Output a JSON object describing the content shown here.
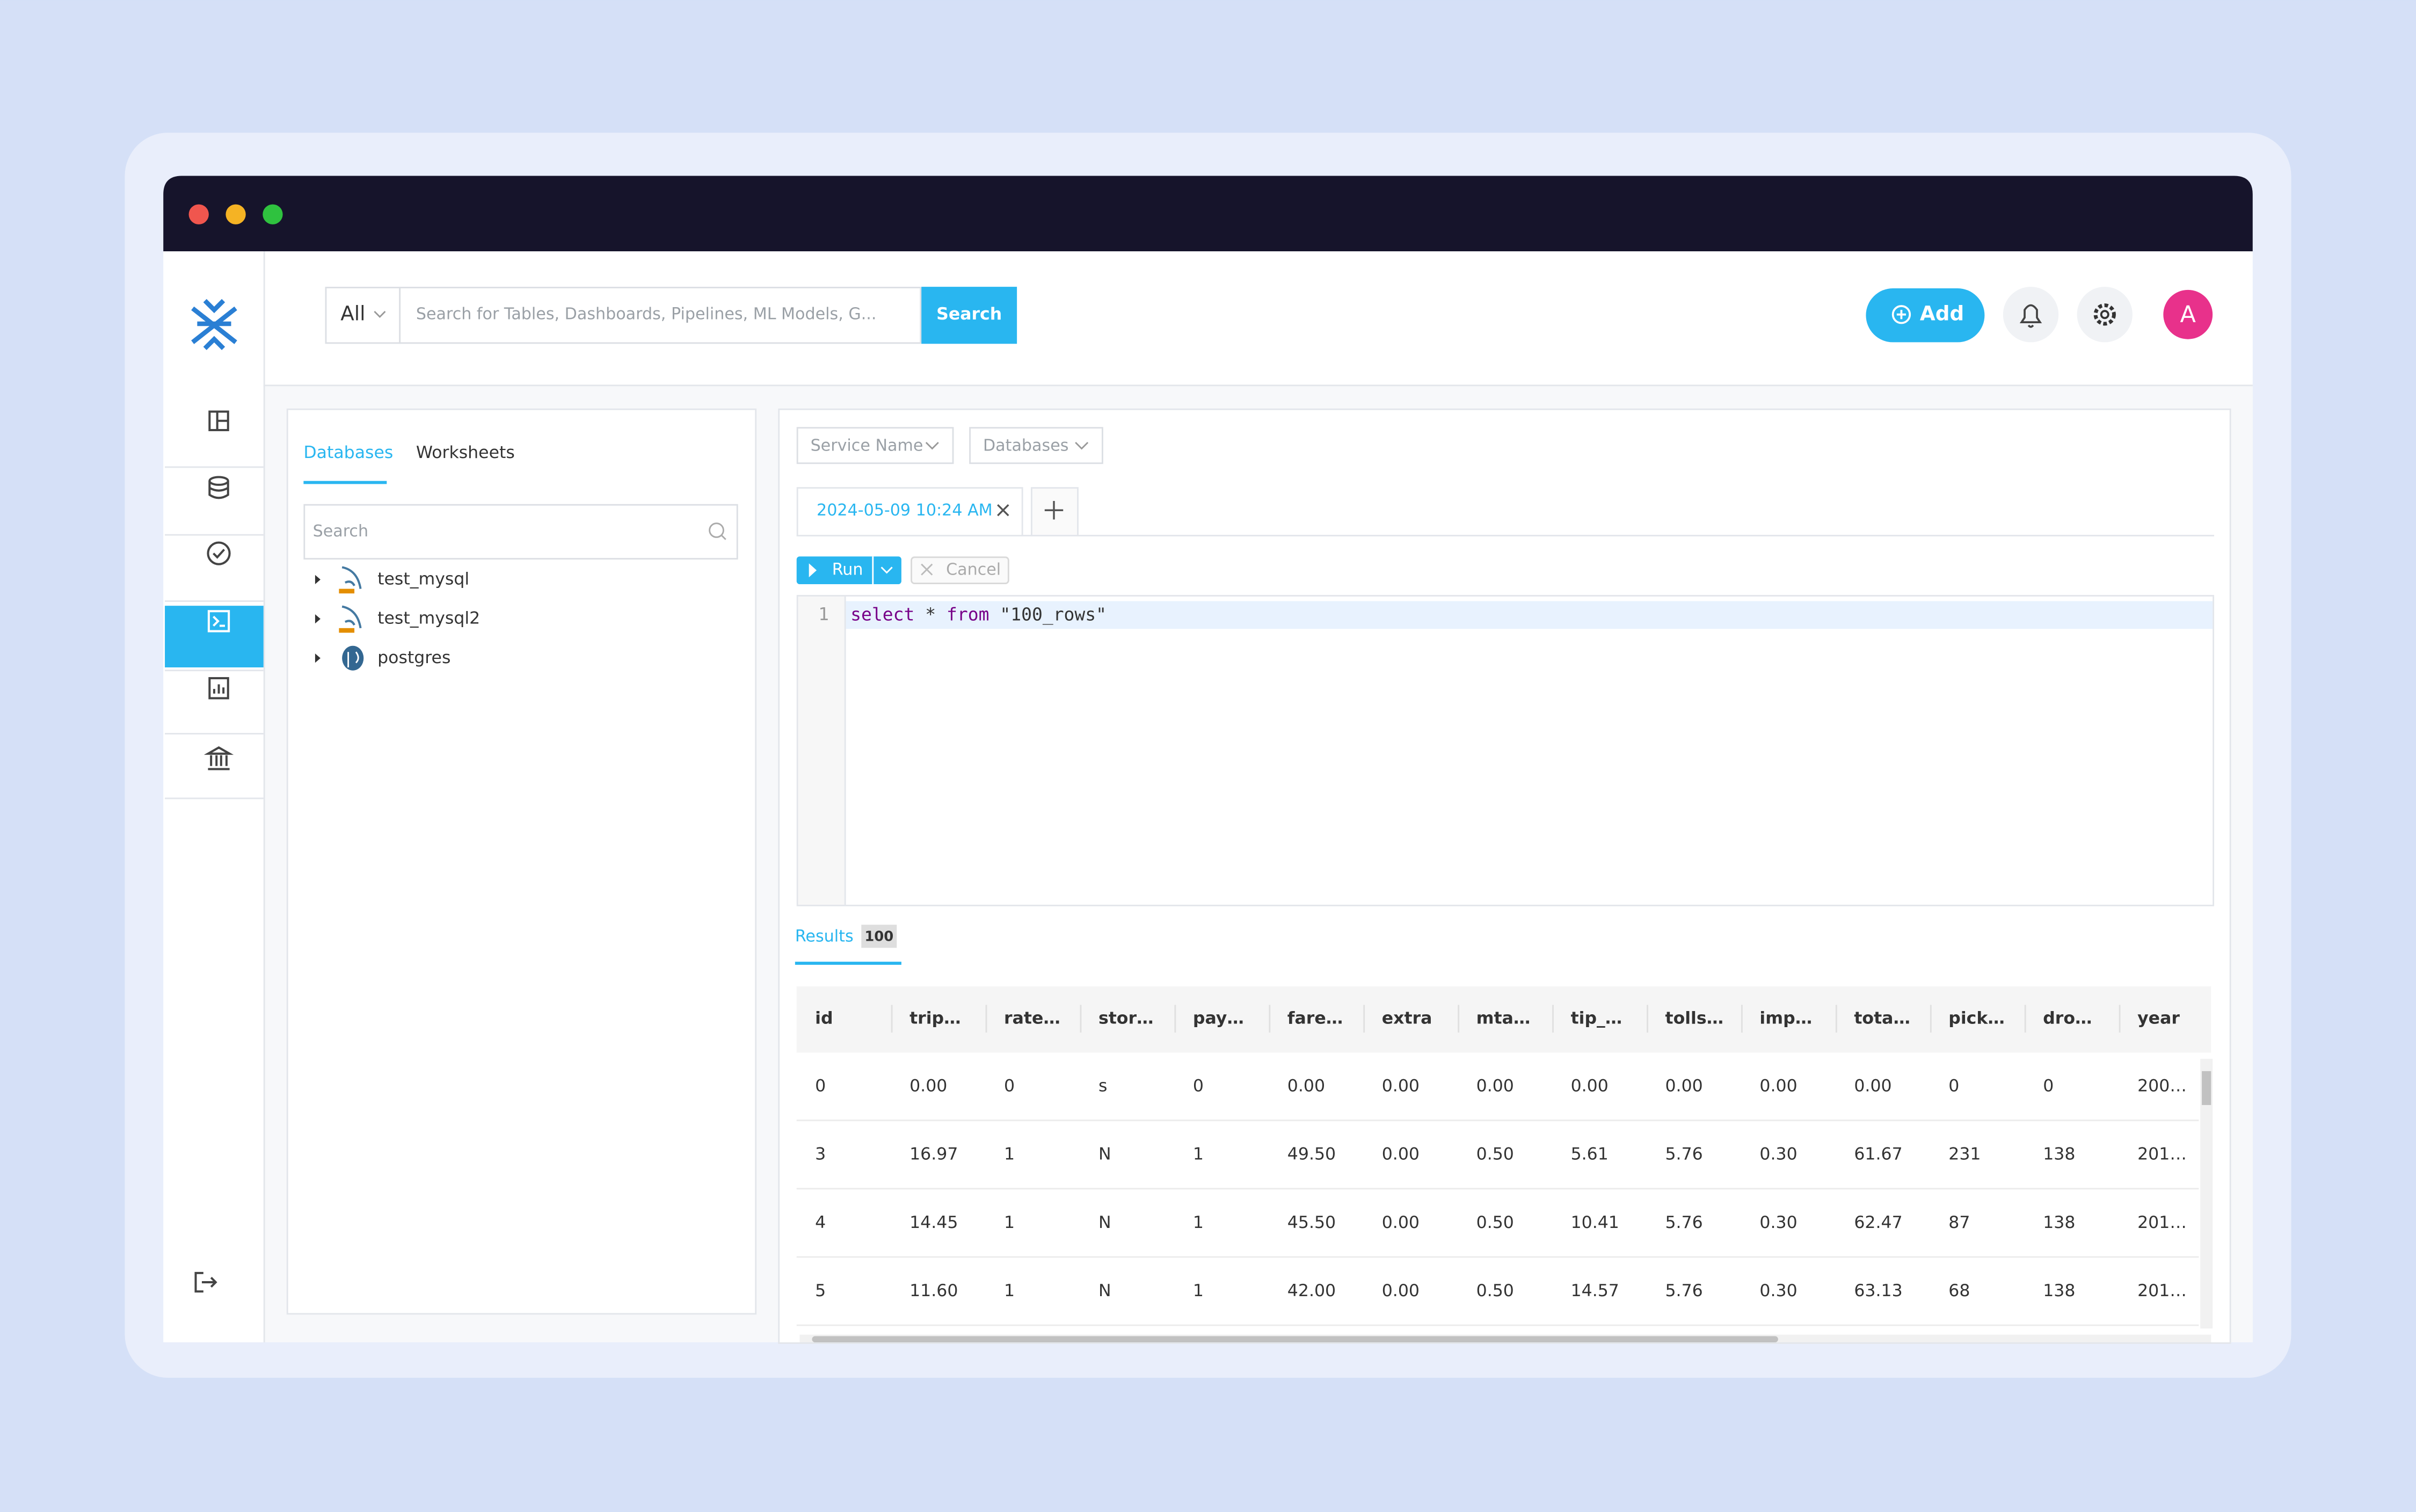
{
  "search": {
    "scope": "All",
    "placeholder": "Search for Tables, Dashboards, Pipelines, ML Models, G...",
    "button": "Search"
  },
  "header_actions": {
    "add": "Add",
    "avatar": "A"
  },
  "explorer": {
    "tabs": [
      "Databases",
      "Worksheets"
    ],
    "search_placeholder": "Search",
    "databases": [
      "test_mysql",
      "test_mysql2",
      "postgres"
    ]
  },
  "query": {
    "filters": [
      "Service Name",
      "Databases"
    ],
    "tab": "2024-05-09 10:24 AM",
    "run": "Run",
    "cancel": "Cancel",
    "line_number": "1",
    "sql_tokens": [
      "select",
      " * ",
      "from",
      " \"100_rows\""
    ]
  },
  "results": {
    "label": "Results",
    "count": "100",
    "columns": [
      "id",
      "trip…",
      "rate…",
      "stor…",
      "pay…",
      "fare…",
      "extra",
      "mta…",
      "tip_…",
      "tolls…",
      "imp…",
      "tota…",
      "pick…",
      "dro…",
      "year"
    ],
    "rows": [
      [
        "0",
        "0.00",
        "0",
        "s",
        "0",
        "0.00",
        "0.00",
        "0.00",
        "0.00",
        "0.00",
        "0.00",
        "0.00",
        "0",
        "0",
        "200…"
      ],
      [
        "3",
        "16.97",
        "1",
        "N",
        "1",
        "49.50",
        "0.00",
        "0.50",
        "5.61",
        "5.76",
        "0.30",
        "61.67",
        "231",
        "138",
        "201…"
      ],
      [
        "4",
        "14.45",
        "1",
        "N",
        "1",
        "45.50",
        "0.00",
        "0.50",
        "10.41",
        "5.76",
        "0.30",
        "62.47",
        "87",
        "138",
        "201…"
      ],
      [
        "5",
        "11.60",
        "1",
        "N",
        "1",
        "42.00",
        "0.00",
        "0.50",
        "14.57",
        "5.76",
        "0.30",
        "63.13",
        "68",
        "138",
        "201…"
      ]
    ]
  }
}
